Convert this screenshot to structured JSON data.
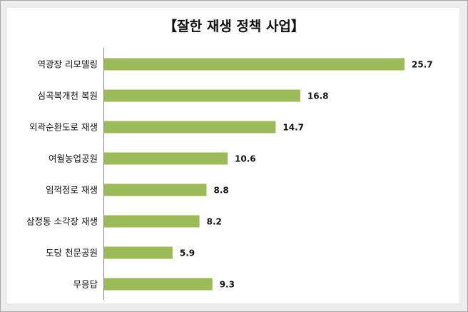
{
  "chart_data": {
    "type": "bar",
    "orientation": "horizontal",
    "title": "【잘한 재생 정책 사업】",
    "categories": [
      "역광장 리모델링",
      "심곡복개천 복원",
      "외곽순환도로 재생",
      "여월농업공원",
      "임꺽정로 재생",
      "삼정동 소각장 재생",
      "도당 천문공원",
      "무응답"
    ],
    "values": [
      25.7,
      16.8,
      14.7,
      10.6,
      8.8,
      8.2,
      5.9,
      9.3
    ],
    "xlabel": "",
    "ylabel": "",
    "xlim": [
      0,
      27
    ],
    "grid": false,
    "legend": "none",
    "bar_color": "#9bbb59"
  }
}
